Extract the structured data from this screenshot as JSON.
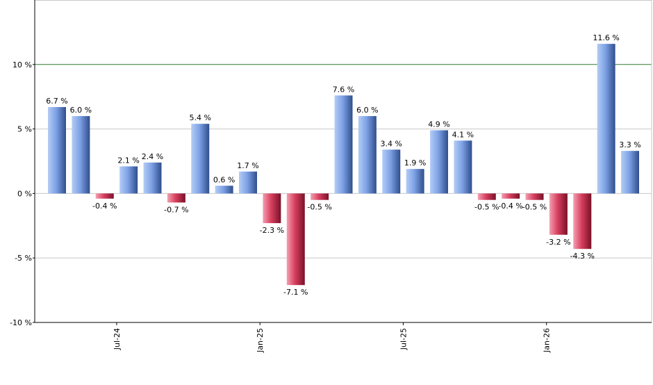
{
  "chart_data": {
    "type": "bar",
    "x_tick_labels": [
      {
        "label": "Jul-24",
        "after_bar_index": 2
      },
      {
        "label": "Jan-25",
        "after_bar_index": 8
      },
      {
        "label": "Jul-25",
        "after_bar_index": 14
      },
      {
        "label": "Jan-26",
        "after_bar_index": 20
      }
    ],
    "y_ticks": [
      {
        "value": 10,
        "label": "10 %"
      },
      {
        "value": 5,
        "label": "5 %"
      },
      {
        "value": 0,
        "label": "0 %"
      },
      {
        "value": -5,
        "label": "-5 %"
      },
      {
        "value": -10,
        "label": "-10 %"
      }
    ],
    "ylim": [
      -10,
      15
    ],
    "reference_line": {
      "value": 10,
      "color": "#2f7a2f"
    },
    "grid": true,
    "colors": {
      "positive_light": "#a9c4f2",
      "positive_dark": "#2f4e8c",
      "negative_light": "#f08aa0",
      "negative_dark": "#7a1028",
      "gridline": "#c8c8c8",
      "axis": "#000000"
    },
    "values": [
      6.7,
      6.0,
      -0.4,
      2.1,
      2.4,
      -0.7,
      5.4,
      0.6,
      1.7,
      -2.3,
      -7.1,
      -0.5,
      7.6,
      6.0,
      3.4,
      1.9,
      4.9,
      4.1,
      -0.5,
      -0.4,
      -0.5,
      -3.2,
      -4.3,
      11.6,
      3.3
    ],
    "value_labels": [
      "6.7 %",
      "6.0 %",
      "-0.4 %",
      "2.1 %",
      "2.4 %",
      "-0.7 %",
      "5.4 %",
      "0.6 %",
      "1.7 %",
      "-2.3 %",
      "-7.1 %",
      "-0.5 %",
      "7.6 %",
      "6.0 %",
      "3.4 %",
      "1.9 %",
      "4.9 %",
      "4.1 %",
      "-0.5 %",
      "-0.4 %",
      "-0.5 %",
      "-3.2 %",
      "-4.3 %",
      "11.6 %",
      "3.3 %"
    ]
  }
}
